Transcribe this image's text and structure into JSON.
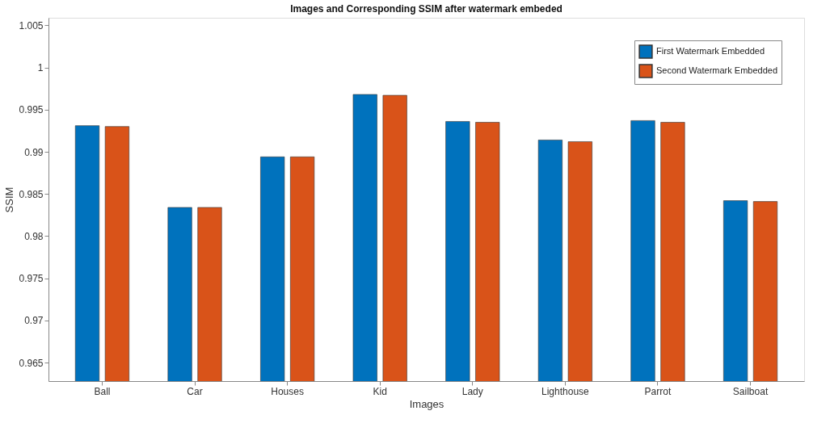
{
  "chart_data": {
    "type": "bar",
    "title": "Images and Corresponding SSIM after watermark embeded",
    "xlabel": "Images",
    "ylabel": "SSIM",
    "categories": [
      "Ball",
      "Car",
      "Houses",
      "Kid",
      "Lady",
      "Lighthouse",
      "Parrot",
      "Sailboat"
    ],
    "series": [
      {
        "name": "First Watermark Embedded",
        "color": "#0072bd",
        "values": [
          0.9931,
          0.9834,
          0.9894,
          0.9968,
          0.9936,
          0.9914,
          0.9937,
          0.9842
        ]
      },
      {
        "name": "Second Watermark Embedded",
        "color": "#d95319",
        "values": [
          0.993,
          0.9834,
          0.9894,
          0.9967,
          0.9935,
          0.9912,
          0.9935,
          0.9841
        ]
      }
    ],
    "ylim": [
      0.9628,
      1.0059
    ],
    "yticks": [
      0.965,
      0.97,
      0.975,
      0.98,
      0.985,
      0.99,
      0.995,
      1,
      1.005
    ],
    "legend": "top right",
    "grid": false
  }
}
